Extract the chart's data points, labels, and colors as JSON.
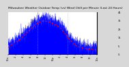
{
  "title": "Milwaukee Weather Outdoor Temp (vs) Wind Chill per Minute (Last 24 Hours)",
  "bg_color": "#d8d8d8",
  "plot_bg_color": "#ffffff",
  "bar_color": "#0000ff",
  "line_color": "#ff0000",
  "n_points": 1440,
  "y_min": -5,
  "y_max": 45,
  "y_ticks": [
    45,
    35,
    25,
    15,
    5,
    -5
  ],
  "vline_positions": [
    0.33,
    0.665
  ],
  "x_tick_labels": [
    "12a",
    "2",
    "4",
    "6",
    "8",
    "10",
    "12p",
    "2",
    "4",
    "6",
    "8",
    "10",
    "12a"
  ],
  "title_fontsize": 3.2,
  "tick_fontsize": 2.5
}
